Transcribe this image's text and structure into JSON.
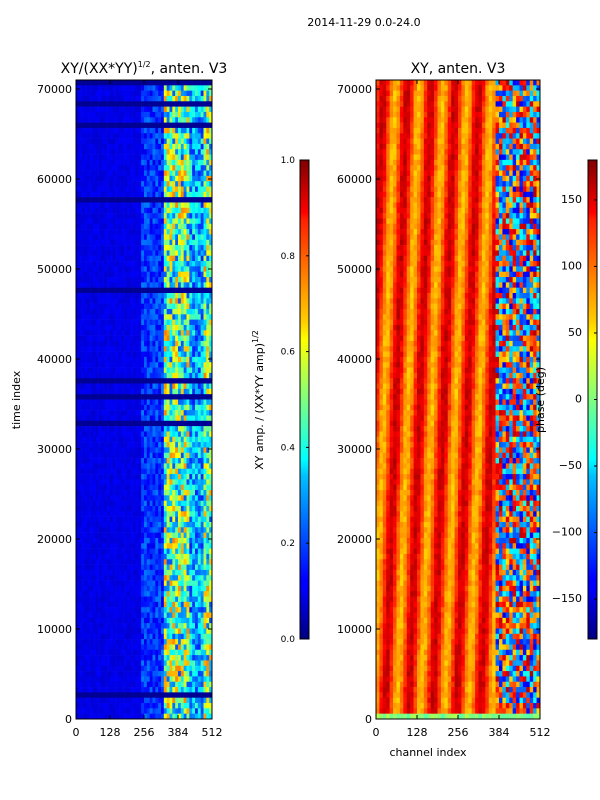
{
  "figure": {
    "suptitle": "2014-11-29 0.0-24.0"
  },
  "chart_data": [
    {
      "type": "heatmap",
      "title": "XY/(XX*YY)",
      "title_sup": "1/2",
      "title_suffix": ", anten. V3",
      "xlabel": "",
      "ylabel": "time index",
      "xlim": [
        0,
        512
      ],
      "ylim": [
        0,
        71000
      ],
      "xticks": [
        "0",
        "128",
        "256",
        "384",
        "512"
      ],
      "xtick_values": [
        0,
        128,
        256,
        384,
        512
      ],
      "yticks": [
        "0",
        "10000",
        "20000",
        "30000",
        "40000",
        "50000",
        "60000",
        "70000"
      ],
      "ytick_values": [
        0,
        10000,
        20000,
        30000,
        40000,
        50000,
        60000,
        70000
      ],
      "colormap": "jet",
      "colorbar": {
        "label": "XY amp. / (XX*YY amp)",
        "label_sup": "1/2",
        "range": [
          0.0,
          1.0
        ],
        "ticks": [
          "0.0",
          "0.2",
          "0.4",
          "0.6",
          "0.8",
          "1.0"
        ],
        "tick_values": [
          0.0,
          0.2,
          0.4,
          0.6,
          0.8,
          1.0
        ]
      }
    },
    {
      "type": "heatmap",
      "title": "XY, anten. V3",
      "xlabel": "channel index",
      "ylabel": "",
      "xlim": [
        0,
        512
      ],
      "ylim": [
        0,
        71000
      ],
      "xticks": [
        "0",
        "128",
        "256",
        "384",
        "512"
      ],
      "xtick_values": [
        0,
        128,
        256,
        384,
        512
      ],
      "yticks": [
        "0",
        "10000",
        "20000",
        "30000",
        "40000",
        "50000",
        "60000",
        "70000"
      ],
      "ytick_values": [
        0,
        10000,
        20000,
        30000,
        40000,
        50000,
        60000,
        70000
      ],
      "colormap": "jet",
      "colorbar": {
        "label": "phase (deg)",
        "range": [
          -180,
          180
        ],
        "ticks": [
          "−150",
          "−100",
          "−50",
          "0",
          "50",
          "100",
          "150"
        ],
        "tick_values": [
          -150,
          -100,
          -50,
          0,
          50,
          100,
          150
        ]
      }
    }
  ]
}
